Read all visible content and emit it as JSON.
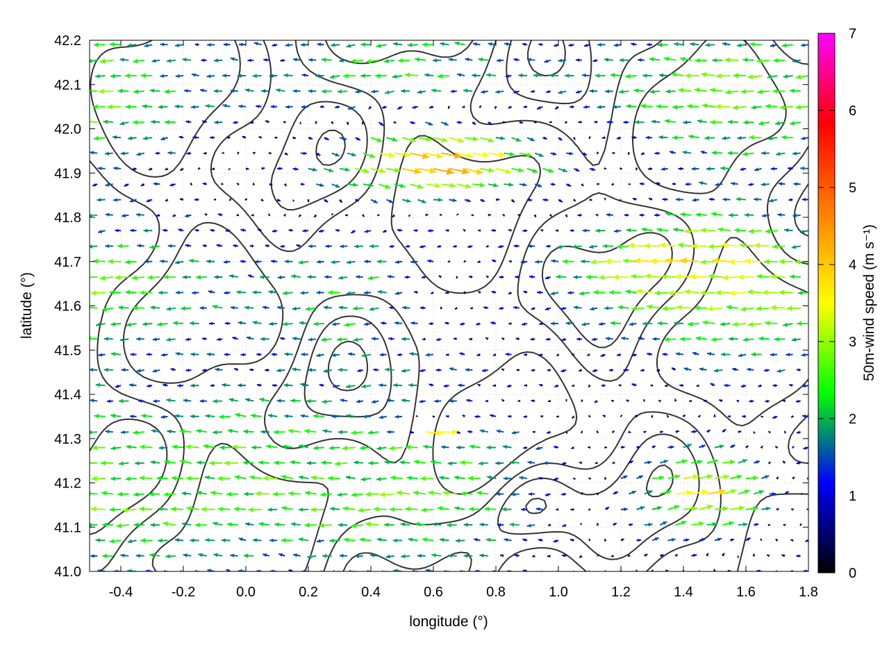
{
  "chart_data": {
    "type": "vector-field",
    "xlabel": "longitude (°)",
    "ylabel": "latitude (°)",
    "xlim": [
      -0.5,
      1.8
    ],
    "ylim": [
      41.0,
      42.2
    ],
    "x_ticks": [
      -0.4,
      -0.2,
      0.0,
      0.2,
      0.4,
      0.6,
      0.8,
      1.0,
      1.2,
      1.4,
      1.6,
      1.8
    ],
    "x_tick_labels": [
      "-0.4",
      "-0.2",
      "0.0",
      "0.2",
      "0.4",
      "0.6",
      "0.8",
      "1.0",
      "1.2",
      "1.4",
      "1.6",
      "1.8"
    ],
    "y_ticks": [
      41.0,
      41.1,
      41.2,
      41.3,
      41.4,
      41.5,
      41.6,
      41.7,
      41.8,
      41.9,
      42.0,
      42.1,
      42.2
    ],
    "y_tick_labels": [
      "41.0",
      "41.1",
      "41.2",
      "41.3",
      "41.4",
      "41.5",
      "41.6",
      "41.7",
      "41.8",
      "41.9",
      "42.0",
      "42.1",
      "42.2"
    ],
    "grid": "dotted",
    "colorbar": {
      "label": "50m-wind speed (m s⁻¹)",
      "range": [
        0,
        7
      ],
      "ticks": [
        0,
        1,
        2,
        3,
        4,
        5,
        6,
        7
      ],
      "tick_labels": [
        "0",
        "1",
        "2",
        "3",
        "4",
        "5",
        "6",
        "7"
      ],
      "colors": [
        "#000000",
        "#0000ff",
        "#00ff00",
        "#ffff00",
        "#ff8000",
        "#ff0000",
        "#ff00ff"
      ]
    },
    "contour_color": "#333333",
    "arrow_grid": {
      "lon_start": -0.5,
      "lon_end": 1.8,
      "lon_step": 0.05,
      "lat_start": 41.0,
      "lat_end": 42.2,
      "lat_step": 0.035
    },
    "wind_regions": [
      {
        "lon": [
          -0.5,
          0.5
        ],
        "lat": [
          41.0,
          41.45
        ],
        "u": -2.5,
        "v": 0.2
      },
      {
        "lon": [
          1.1,
          1.8
        ],
        "lat": [
          41.0,
          41.35
        ],
        "u": 3.5,
        "v": 0.6
      },
      {
        "lon": [
          1.0,
          1.8
        ],
        "lat": [
          41.6,
          41.8
        ],
        "u": -3.5,
        "v": 0.1
      },
      {
        "lon": [
          0.1,
          1.1
        ],
        "lat": [
          41.8,
          42.05
        ],
        "u": 4.0,
        "v": -0.8
      },
      {
        "lon": [
          0.5,
          0.7
        ],
        "lat": [
          41.3,
          41.35
        ],
        "u": 5.0,
        "v": -0.2
      },
      {
        "lon": [
          0.4,
          1.0
        ],
        "lat": [
          41.45,
          41.8
        ],
        "u": -0.3,
        "v": 0.0
      }
    ]
  }
}
